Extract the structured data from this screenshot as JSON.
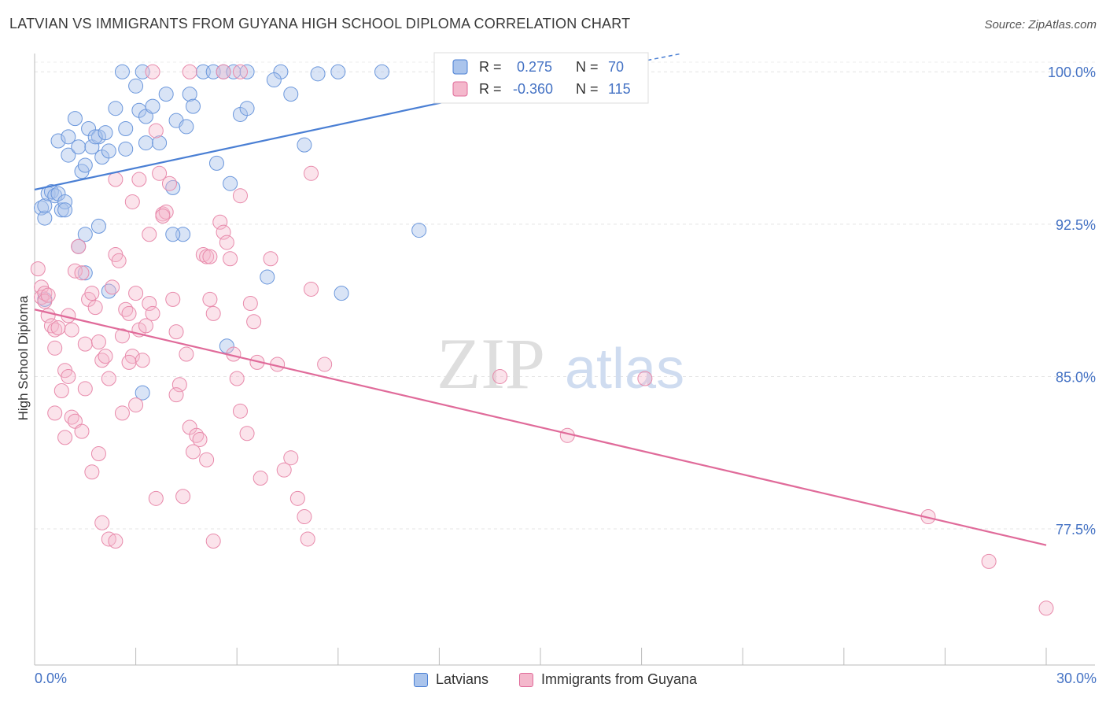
{
  "title": "LATVIAN VS IMMIGRANTS FROM GUYANA HIGH SCHOOL DIPLOMA CORRELATION CHART",
  "source": "Source: ZipAtlas.com",
  "watermark": {
    "zip": "ZIP",
    "atlas": "atlas"
  },
  "colors": {
    "blue": "#4a7fd4",
    "blue_fill": "#aac4ec",
    "pink": "#e06b9a",
    "pink_fill": "#f4b8cc",
    "tick_text": "#4472c4",
    "grid": "#e4e4e4"
  },
  "stats": [
    {
      "r_label": "R =",
      "r_value": " 0.275",
      "n_label": "N =",
      "n_value": "70"
    },
    {
      "r_label": "R =",
      "r_value": "-0.360",
      "n_label": "N =",
      "n_value": "115"
    }
  ],
  "chart_data": {
    "type": "scatter",
    "title": "LATVIAN VS IMMIGRANTS FROM GUYANA HIGH SCHOOL DIPLOMA CORRELATION CHART",
    "xlabel": "",
    "ylabel": "High School Diploma",
    "xlim": [
      0,
      30
    ],
    "ylim": [
      70.8,
      100.9
    ],
    "x_tick_labels": [
      "0.0%",
      "30.0%"
    ],
    "y_ticks": [
      77.5,
      85.0,
      92.5,
      100.0
    ],
    "y_tick_labels": [
      "77.5%",
      "85.0%",
      "92.5%",
      "100.0%"
    ],
    "grid": true,
    "legend_position": "bottom",
    "series": [
      {
        "name": "Latvians",
        "color": "#4a7fd4",
        "r": 0.275,
        "n": 70,
        "trend": {
          "x": [
            0.0,
            15.5
          ],
          "y": [
            94.2,
            99.7
          ]
        },
        "points": [
          [
            0.2,
            93.3
          ],
          [
            0.3,
            92.8
          ],
          [
            0.3,
            93.4
          ],
          [
            0.4,
            94.0
          ],
          [
            0.5,
            94.1
          ],
          [
            0.6,
            93.9
          ],
          [
            0.7,
            94.0
          ],
          [
            0.8,
            93.2
          ],
          [
            0.9,
            93.6
          ],
          [
            0.9,
            93.2
          ],
          [
            0.7,
            96.6
          ],
          [
            1.0,
            96.8
          ],
          [
            1.0,
            95.9
          ],
          [
            1.2,
            97.7
          ],
          [
            1.3,
            96.3
          ],
          [
            1.4,
            95.1
          ],
          [
            1.5,
            95.4
          ],
          [
            1.6,
            97.2
          ],
          [
            1.7,
            96.3
          ],
          [
            1.9,
            96.8
          ],
          [
            1.8,
            96.8
          ],
          [
            2.0,
            95.8
          ],
          [
            2.1,
            97.0
          ],
          [
            2.2,
            96.1
          ],
          [
            2.4,
            98.2
          ],
          [
            2.7,
            96.2
          ],
          [
            2.7,
            97.2
          ],
          [
            3.0,
            99.3
          ],
          [
            3.1,
            98.1
          ],
          [
            3.3,
            96.5
          ],
          [
            3.3,
            97.8
          ],
          [
            3.5,
            98.3
          ],
          [
            3.7,
            96.5
          ],
          [
            4.1,
            94.3
          ],
          [
            3.9,
            98.9
          ],
          [
            4.4,
            92.0
          ],
          [
            4.1,
            92.0
          ],
          [
            4.2,
            97.6
          ],
          [
            4.5,
            97.3
          ],
          [
            4.6,
            98.9
          ],
          [
            4.7,
            98.3
          ],
          [
            5.0,
            100.0
          ],
          [
            5.3,
            100.0
          ],
          [
            5.6,
            100.0
          ],
          [
            5.9,
            100.0
          ],
          [
            6.3,
            100.0
          ],
          [
            5.4,
            95.5
          ],
          [
            5.8,
            94.5
          ],
          [
            6.1,
            97.9
          ],
          [
            6.3,
            98.2
          ],
          [
            2.6,
            100.0
          ],
          [
            3.2,
            100.0
          ],
          [
            7.3,
            100.0
          ],
          [
            7.1,
            99.6
          ],
          [
            7.6,
            98.9
          ],
          [
            8.4,
            99.9
          ],
          [
            9.0,
            100.0
          ],
          [
            8.0,
            96.4
          ],
          [
            10.3,
            100.0
          ],
          [
            1.3,
            91.4
          ],
          [
            1.5,
            92.0
          ],
          [
            1.9,
            92.4
          ],
          [
            1.5,
            90.1
          ],
          [
            2.2,
            89.2
          ],
          [
            5.7,
            86.5
          ],
          [
            3.2,
            84.2
          ],
          [
            6.9,
            89.9
          ],
          [
            9.1,
            89.1
          ],
          [
            11.4,
            92.2
          ],
          [
            0.3,
            88.8
          ]
        ]
      },
      {
        "name": "Immigrants from Guyana",
        "color": "#e06b9a",
        "r": -0.36,
        "n": 115,
        "trend": {
          "x": [
            0.0,
            30.0
          ],
          "y": [
            88.3,
            76.7
          ]
        },
        "points": [
          [
            0.1,
            90.3
          ],
          [
            0.2,
            89.4
          ],
          [
            0.2,
            88.9
          ],
          [
            0.3,
            89.1
          ],
          [
            0.3,
            88.7
          ],
          [
            0.4,
            88.0
          ],
          [
            0.5,
            87.5
          ],
          [
            0.6,
            87.3
          ],
          [
            0.6,
            86.4
          ],
          [
            0.7,
            87.4
          ],
          [
            0.8,
            84.3
          ],
          [
            0.9,
            85.3
          ],
          [
            1.0,
            85.0
          ],
          [
            1.0,
            88.0
          ],
          [
            1.1,
            87.3
          ],
          [
            1.2,
            90.2
          ],
          [
            1.3,
            91.4
          ],
          [
            1.4,
            90.1
          ],
          [
            1.5,
            86.6
          ],
          [
            1.5,
            84.4
          ],
          [
            1.6,
            88.8
          ],
          [
            1.7,
            89.1
          ],
          [
            1.8,
            88.4
          ],
          [
            1.9,
            86.7
          ],
          [
            2.0,
            85.8
          ],
          [
            2.1,
            86.0
          ],
          [
            2.2,
            84.9
          ],
          [
            2.3,
            89.4
          ],
          [
            2.4,
            91.0
          ],
          [
            2.5,
            90.7
          ],
          [
            2.6,
            87.0
          ],
          [
            2.7,
            88.3
          ],
          [
            2.8,
            88.1
          ],
          [
            2.9,
            86.0
          ],
          [
            3.0,
            89.1
          ],
          [
            3.1,
            87.3
          ],
          [
            3.2,
            85.8
          ],
          [
            3.3,
            87.5
          ],
          [
            3.4,
            88.6
          ],
          [
            3.5,
            88.1
          ],
          [
            3.6,
            97.1
          ],
          [
            3.7,
            95.0
          ],
          [
            3.8,
            93.0
          ],
          [
            3.9,
            93.1
          ],
          [
            4.0,
            94.5
          ],
          [
            4.1,
            88.8
          ],
          [
            4.2,
            87.2
          ],
          [
            4.3,
            84.6
          ],
          [
            4.5,
            86.1
          ],
          [
            4.6,
            82.5
          ],
          [
            4.8,
            82.1
          ],
          [
            4.9,
            81.9
          ],
          [
            5.0,
            91.0
          ],
          [
            5.1,
            90.9
          ],
          [
            5.2,
            88.8
          ],
          [
            5.3,
            88.1
          ],
          [
            5.5,
            92.6
          ],
          [
            5.6,
            92.1
          ],
          [
            5.7,
            91.6
          ],
          [
            5.8,
            90.8
          ],
          [
            5.9,
            86.1
          ],
          [
            6.0,
            84.9
          ],
          [
            6.1,
            83.3
          ],
          [
            6.3,
            82.2
          ],
          [
            6.4,
            88.6
          ],
          [
            6.5,
            87.7
          ],
          [
            6.6,
            85.7
          ],
          [
            6.7,
            80.0
          ],
          [
            7.0,
            90.8
          ],
          [
            7.2,
            85.6
          ],
          [
            7.4,
            80.4
          ],
          [
            7.6,
            81.0
          ],
          [
            7.8,
            79.0
          ],
          [
            8.0,
            78.1
          ],
          [
            8.1,
            77.0
          ],
          [
            8.2,
            89.3
          ],
          [
            8.6,
            85.6
          ],
          [
            8.2,
            95.0
          ],
          [
            0.6,
            83.2
          ],
          [
            0.9,
            82.0
          ],
          [
            1.1,
            83.0
          ],
          [
            1.2,
            82.8
          ],
          [
            1.4,
            82.3
          ],
          [
            1.7,
            80.3
          ],
          [
            1.9,
            81.2
          ],
          [
            2.0,
            77.8
          ],
          [
            2.2,
            77.0
          ],
          [
            2.4,
            76.9
          ],
          [
            2.8,
            85.7
          ],
          [
            3.6,
            79.0
          ],
          [
            4.4,
            79.1
          ],
          [
            5.3,
            76.9
          ],
          [
            4.2,
            84.1
          ],
          [
            3.0,
            83.6
          ],
          [
            2.6,
            83.2
          ],
          [
            4.7,
            81.3
          ],
          [
            5.1,
            80.9
          ],
          [
            3.4,
            92.0
          ],
          [
            2.9,
            93.6
          ],
          [
            2.4,
            94.7
          ],
          [
            3.1,
            94.7
          ],
          [
            5.2,
            90.9
          ],
          [
            3.8,
            92.9
          ],
          [
            6.1,
            93.9
          ],
          [
            13.8,
            85.0
          ],
          [
            15.8,
            82.1
          ],
          [
            18.1,
            84.9
          ],
          [
            26.5,
            78.1
          ],
          [
            28.3,
            75.9
          ],
          [
            30.0,
            73.6
          ],
          [
            3.5,
            100.0
          ],
          [
            4.6,
            100.0
          ],
          [
            5.6,
            100.0
          ],
          [
            6.1,
            100.0
          ],
          [
            0.4,
            89.0
          ]
        ]
      }
    ]
  },
  "legend": [
    {
      "label": "Latvians"
    },
    {
      "label": "Immigrants from Guyana"
    }
  ]
}
